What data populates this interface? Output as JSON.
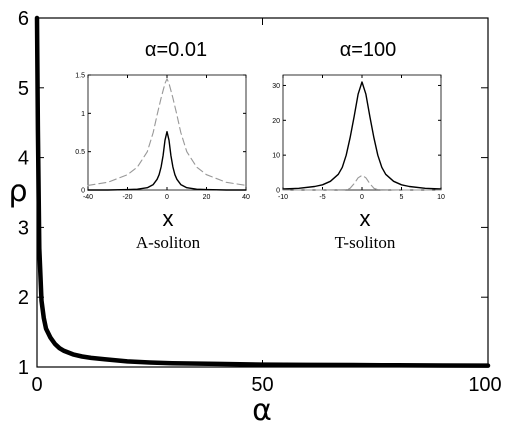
{
  "chart_data": [
    {
      "type": "line",
      "xlabel": "α",
      "ylabel": "ρ",
      "xlim": [
        0,
        100
      ],
      "ylim": [
        1,
        6
      ],
      "xticks": [
        0,
        50,
        100
      ],
      "yticks": [
        1,
        2,
        3,
        4,
        5,
        6
      ],
      "grid": false,
      "series": [
        {
          "x": [
            0.01,
            0.2,
            0.5,
            1,
            1.5,
            2,
            3,
            4,
            5,
            6,
            8,
            10,
            12,
            15,
            20,
            25,
            30,
            40,
            50,
            60,
            70,
            80,
            90,
            100
          ],
          "y": [
            6.0,
            4.4,
            2.7,
            1.95,
            1.7,
            1.55,
            1.42,
            1.33,
            1.27,
            1.23,
            1.18,
            1.15,
            1.13,
            1.11,
            1.08,
            1.065,
            1.055,
            1.045,
            1.035,
            1.03,
            1.028,
            1.025,
            1.022,
            1.02
          ]
        }
      ]
    },
    {
      "type": "line",
      "title": "α=0.01",
      "xlabel": "x",
      "caption": "A-soliton",
      "xlim": [
        -40,
        40
      ],
      "ylim": [
        0,
        1.5
      ],
      "xticks": [
        -40,
        -20,
        0,
        20,
        40
      ],
      "yticks": [
        0,
        0.5,
        1,
        1.5
      ],
      "series": [
        {
          "style": "solid",
          "x": [
            -40,
            -30,
            -20,
            -15,
            -10,
            -7,
            -5,
            -4,
            -3,
            -2,
            -1,
            0,
            1,
            2,
            3,
            4,
            5,
            7,
            10,
            15,
            20,
            30,
            40
          ],
          "y": [
            0,
            0,
            0.005,
            0.01,
            0.03,
            0.07,
            0.14,
            0.2,
            0.3,
            0.45,
            0.65,
            0.76,
            0.65,
            0.45,
            0.3,
            0.2,
            0.14,
            0.07,
            0.03,
            0.01,
            0.005,
            0,
            0
          ]
        },
        {
          "style": "dashed",
          "x": [
            -40,
            -30,
            -20,
            -15,
            -10,
            -7,
            -5,
            -3,
            -1,
            0,
            1,
            3,
            5,
            7,
            10,
            15,
            20,
            30,
            40
          ],
          "y": [
            0.06,
            0.1,
            0.2,
            0.3,
            0.5,
            0.75,
            0.98,
            1.2,
            1.39,
            1.45,
            1.39,
            1.2,
            0.98,
            0.75,
            0.5,
            0.3,
            0.2,
            0.1,
            0.06
          ]
        }
      ]
    },
    {
      "type": "line",
      "title": "α=100",
      "xlabel": "x",
      "caption": "T-soliton",
      "xlim": [
        -10,
        10
      ],
      "ylim": [
        0,
        33
      ],
      "xticks": [
        -10,
        -5,
        0,
        5,
        10
      ],
      "yticks": [
        0,
        10,
        20,
        30
      ],
      "series": [
        {
          "style": "solid",
          "x": [
            -10,
            -8,
            -6,
            -5,
            -4,
            -3,
            -2.5,
            -2,
            -1.5,
            -1,
            -0.5,
            0,
            0.5,
            1,
            1.5,
            2,
            2.5,
            3,
            4,
            5,
            6,
            8,
            10
          ],
          "y": [
            0.3,
            0.5,
            1,
            1.5,
            2.5,
            4.5,
            6.5,
            10,
            15,
            21,
            27.5,
            31,
            27.5,
            21,
            15,
            10,
            6.5,
            4.5,
            2.5,
            1.5,
            1,
            0.5,
            0.3
          ]
        },
        {
          "style": "dashed",
          "x": [
            -10,
            -5,
            -2,
            -1.5,
            -1,
            -0.5,
            0,
            0.5,
            1,
            1.5,
            2,
            5,
            10
          ],
          "y": [
            0,
            0,
            0.1,
            0.5,
            1.8,
            3.5,
            4.2,
            3.5,
            1.8,
            0.5,
            0.1,
            0,
            0
          ]
        }
      ]
    }
  ]
}
